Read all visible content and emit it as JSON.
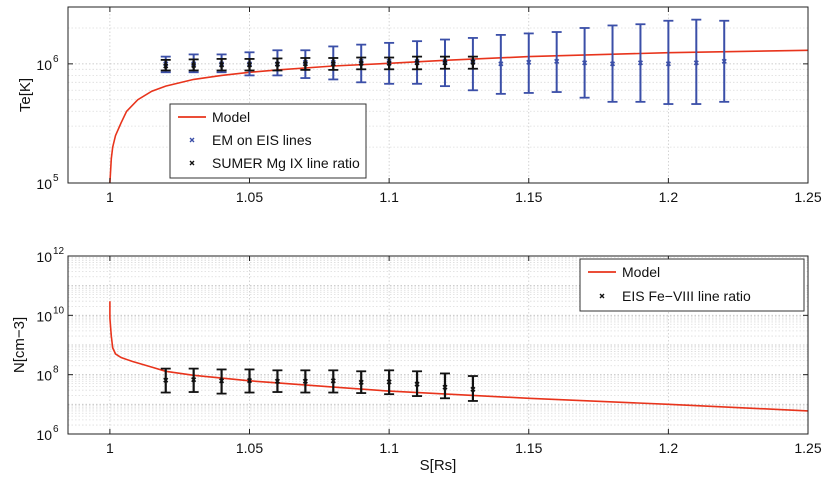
{
  "chart_data": [
    {
      "type": "scatter",
      "ylabel": "Te[K]",
      "xlabel": "",
      "xlim": [
        0.985,
        1.25
      ],
      "ylim": [
        100000,
        3000000
      ],
      "yscale": "log",
      "grid": true,
      "x_ticks": [
        1,
        1.05,
        1.1,
        1.15,
        1.2,
        1.25
      ],
      "x_tick_labels": [
        "1",
        "1.05",
        "1.1",
        "1.15",
        "1.2",
        "1.25"
      ],
      "y_ticks": [
        100000,
        1000000
      ],
      "y_tick_labels": [
        {
          "base": "10",
          "exp": "5"
        },
        {
          "base": "10",
          "exp": "6"
        }
      ],
      "legend": {
        "placement": "lower-left",
        "entries": [
          {
            "label": "Model",
            "kind": "line",
            "color": "#e8341c"
          },
          {
            "label": "EM on EIS lines",
            "kind": "marker",
            "color": "#3b4fa8"
          },
          {
            "label": "SUMER Mg IX line ratio",
            "kind": "marker",
            "color": "#111111"
          }
        ]
      },
      "series": [
        {
          "name": "Model",
          "kind": "line",
          "color": "#e8341c",
          "x": [
            1.0,
            1.0005,
            1.001,
            1.002,
            1.004,
            1.006,
            1.01,
            1.015,
            1.02,
            1.03,
            1.04,
            1.05,
            1.06,
            1.08,
            1.1,
            1.12,
            1.15,
            1.2,
            1.25
          ],
          "y": [
            100000,
            160000,
            200000,
            250000,
            320000,
            400000,
            500000,
            590000,
            650000,
            740000,
            800000,
            850000,
            890000,
            960000,
            1010000,
            1070000,
            1150000,
            1240000,
            1300000
          ]
        },
        {
          "name": "EM on EIS lines",
          "kind": "errorbar",
          "color": "#3b4fa8",
          "x": [
            1.02,
            1.03,
            1.04,
            1.05,
            1.06,
            1.07,
            1.08,
            1.09,
            1.1,
            1.11,
            1.12,
            1.13,
            1.14,
            1.15,
            1.16,
            1.17,
            1.18,
            1.19,
            1.2,
            1.21,
            1.22
          ],
          "y": [
            1000000,
            1000000,
            1000000,
            1000000,
            1000000,
            1030000,
            1030000,
            1050000,
            1050000,
            1050000,
            1050000,
            1050000,
            1000000,
            1030000,
            1050000,
            1020000,
            1000000,
            1020000,
            1000000,
            1020000,
            1050000
          ],
          "y_low": [
            850000,
            850000,
            850000,
            800000,
            800000,
            760000,
            740000,
            700000,
            680000,
            680000,
            650000,
            600000,
            560000,
            570000,
            580000,
            520000,
            480000,
            480000,
            460000,
            460000,
            480000
          ],
          "y_high": [
            1150000,
            1200000,
            1200000,
            1250000,
            1300000,
            1300000,
            1400000,
            1450000,
            1500000,
            1550000,
            1600000,
            1650000,
            1750000,
            1800000,
            1850000,
            2000000,
            2100000,
            2150000,
            2300000,
            2350000,
            2300000
          ]
        },
        {
          "name": "SUMER Mg IX line ratio",
          "kind": "errorbar",
          "color": "#111111",
          "x": [
            1.02,
            1.03,
            1.04,
            1.05,
            1.06,
            1.07,
            1.08,
            1.09,
            1.1,
            1.11,
            1.12,
            1.13
          ],
          "y": [
            960000,
            970000,
            980000,
            980000,
            990000,
            1000000,
            1000000,
            1010000,
            1010000,
            1020000,
            1020000,
            1030000
          ],
          "y_low": [
            880000,
            880000,
            880000,
            880000,
            880000,
            890000,
            890000,
            900000,
            900000,
            900000,
            910000,
            910000
          ],
          "y_high": [
            1080000,
            1090000,
            1100000,
            1100000,
            1110000,
            1120000,
            1120000,
            1130000,
            1130000,
            1150000,
            1150000,
            1150000
          ]
        }
      ]
    },
    {
      "type": "scatter",
      "ylabel": "N[cm−3]",
      "xlabel": "S[Rs]",
      "xlim": [
        0.985,
        1.25
      ],
      "ylim": [
        1000000,
        1000000000000
      ],
      "yscale": "log",
      "grid": true,
      "x_ticks": [
        1,
        1.05,
        1.1,
        1.15,
        1.2,
        1.25
      ],
      "x_tick_labels": [
        "1",
        "1.05",
        "1.1",
        "1.15",
        "1.2",
        "1.25"
      ],
      "y_ticks": [
        1000000,
        100000000,
        10000000000,
        1000000000000
      ],
      "y_tick_labels": [
        {
          "base": "10",
          "exp": "6"
        },
        {
          "base": "10",
          "exp": "8"
        },
        {
          "base": "10",
          "exp": "10"
        },
        {
          "base": "10",
          "exp": "12"
        }
      ],
      "legend": {
        "placement": "top-right",
        "entries": [
          {
            "label": "Model",
            "kind": "line",
            "color": "#e8341c"
          },
          {
            "label": "EIS Fe−VIII line ratio",
            "kind": "marker",
            "color": "#111111"
          }
        ]
      },
      "series": [
        {
          "name": "Model",
          "kind": "line",
          "color": "#e8341c",
          "x": [
            1.0,
            1.0,
            1.0005,
            1.001,
            1.002,
            1.004,
            1.008,
            1.015,
            1.02,
            1.03,
            1.05,
            1.08,
            1.1,
            1.13,
            1.15,
            1.2,
            1.25
          ],
          "y": [
            30000000000,
            8000000000,
            2000000000,
            800000000,
            500000000,
            380000000,
            280000000,
            180000000,
            130000000,
            95000000,
            62000000,
            38000000,
            28000000,
            20000000,
            16000000,
            10000000,
            6000000
          ]
        },
        {
          "name": "EIS Fe−VIII line ratio",
          "kind": "errorbar",
          "color": "#111111",
          "x": [
            1.02,
            1.03,
            1.04,
            1.05,
            1.06,
            1.07,
            1.08,
            1.09,
            1.1,
            1.11,
            1.12,
            1.13
          ],
          "y": [
            65000000,
            68000000,
            62000000,
            63000000,
            60000000,
            60000000,
            62000000,
            55000000,
            57000000,
            48000000,
            38000000,
            32000000
          ],
          "y_low": [
            25000000,
            26000000,
            23000000,
            25000000,
            26000000,
            25000000,
            25000000,
            24000000,
            22000000,
            19000000,
            16000000,
            13000000
          ],
          "y_high": [
            160000000,
            160000000,
            150000000,
            150000000,
            140000000,
            140000000,
            140000000,
            130000000,
            140000000,
            130000000,
            110000000,
            90000000
          ]
        }
      ]
    }
  ]
}
